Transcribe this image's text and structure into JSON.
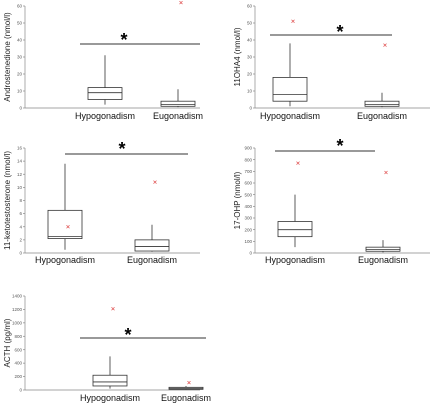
{
  "chart_data": [
    {
      "type": "box",
      "ylabel": "Androstenedione (nmol/l)",
      "ylim": [
        0,
        60
      ],
      "yticks": [
        "0",
        "10",
        "20",
        "30",
        "40",
        "50",
        "60"
      ],
      "categories": [
        "Hypogonadism",
        "Eugonadism"
      ],
      "boxes": [
        {
          "category": "Hypogonadism",
          "min": 2,
          "q1": 5,
          "median": 9,
          "q3": 12,
          "max": 31,
          "outliers": []
        },
        {
          "category": "Eugonadism",
          "min": 0.5,
          "q1": 1,
          "median": 2,
          "q3": 4,
          "max": 11,
          "outliers": [
            62
          ]
        }
      ],
      "significance": "*"
    },
    {
      "type": "box",
      "ylabel": "11OHA4 (nmol/l)",
      "ylim": [
        0,
        60
      ],
      "yticks": [
        "0",
        "10",
        "20",
        "30",
        "40",
        "50",
        "60"
      ],
      "categories": [
        "Hypogonadism",
        "Eugonadism"
      ],
      "boxes": [
        {
          "category": "Hypogonadism",
          "min": 1,
          "q1": 4,
          "median": 8,
          "q3": 18,
          "max": 38,
          "outliers": [
            51
          ]
        },
        {
          "category": "Eugonadism",
          "min": 0.5,
          "q1": 1,
          "median": 2,
          "q3": 4,
          "max": 9,
          "outliers": [
            37
          ]
        }
      ],
      "significance": "*"
    },
    {
      "type": "box",
      "ylabel": "11-ketotestosterone (nmol/l)",
      "ylim": [
        0,
        16
      ],
      "yticks": [
        "0",
        "2",
        "4",
        "6",
        "8",
        "10",
        "12",
        "14",
        "16"
      ],
      "categories": [
        "Hypogonadism",
        "Eugonadism"
      ],
      "boxes": [
        {
          "category": "Hypogonadism",
          "min": 0.5,
          "q1": 2.2,
          "median": 2.5,
          "q3": 6.5,
          "max": 13.6,
          "outliers": [
            4
          ]
        },
        {
          "category": "Eugonadism",
          "min": 0.2,
          "q1": 0.3,
          "median": 1,
          "q3": 2,
          "max": 4.3,
          "outliers": [
            10.8
          ]
        }
      ],
      "significance": "*"
    },
    {
      "type": "box",
      "ylabel": "17-OHP (nmol/l)",
      "ylim": [
        0,
        900
      ],
      "yticks": [
        "0",
        "100",
        "200",
        "300",
        "400",
        "500",
        "600",
        "700",
        "800",
        "900"
      ],
      "categories": [
        "Hypogonadism",
        "Eugonadism"
      ],
      "boxes": [
        {
          "category": "Hypogonadism",
          "min": 50,
          "q1": 140,
          "median": 200,
          "q3": 270,
          "max": 500,
          "outliers": [
            770
          ]
        },
        {
          "category": "Eugonadism",
          "min": 5,
          "q1": 15,
          "median": 30,
          "q3": 50,
          "max": 110,
          "outliers": [
            690
          ]
        }
      ],
      "significance": "*"
    },
    {
      "type": "box",
      "ylabel": "ACTH (pg/ml)",
      "ylim": [
        0,
        1400
      ],
      "yticks": [
        "0",
        "200",
        "400",
        "600",
        "800",
        "1000",
        "1200",
        "1400"
      ],
      "categories": [
        "Hypogonadism",
        "Eugonadism"
      ],
      "boxes": [
        {
          "category": "Hypogonadism",
          "min": 20,
          "q1": 60,
          "median": 120,
          "q3": 220,
          "max": 500,
          "outliers": [
            1210
          ]
        },
        {
          "category": "Eugonadism",
          "min": 5,
          "q1": 10,
          "median": 25,
          "q3": 40,
          "max": 60,
          "outliers": [
            110
          ]
        }
      ],
      "significance": "*"
    }
  ]
}
